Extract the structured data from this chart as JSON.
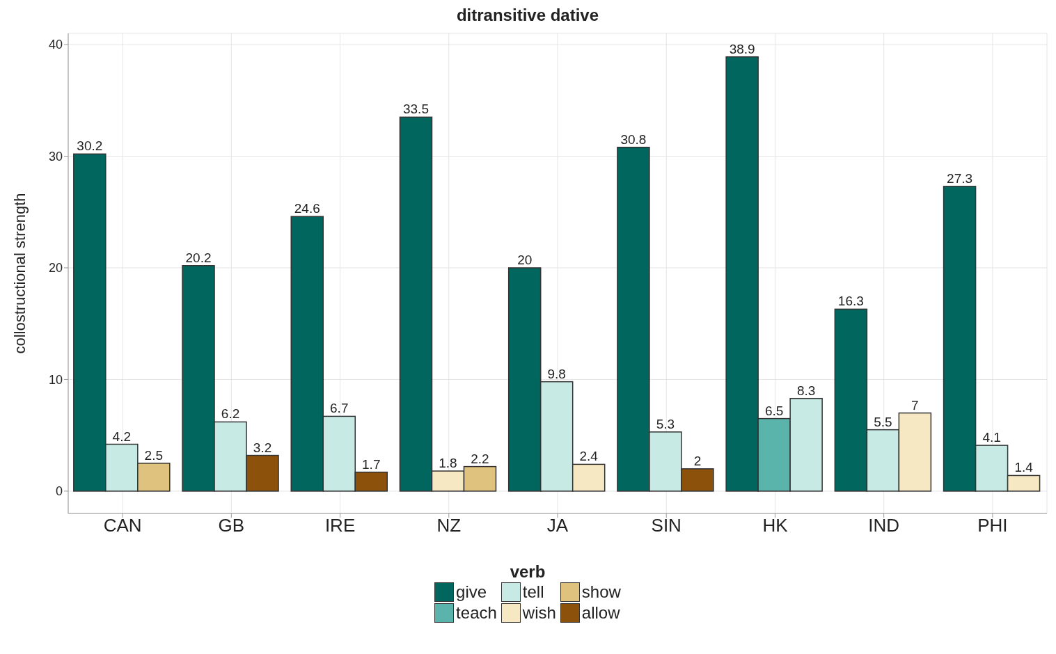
{
  "chart_data": {
    "type": "bar",
    "title": "ditransitive dative",
    "ylabel": "collostructional strength",
    "legend_title": "verb",
    "categories": [
      "CAN",
      "GB",
      "IRE",
      "NZ",
      "JA",
      "SIN",
      "HK",
      "IND",
      "PHI"
    ],
    "series": [
      {
        "name": "give",
        "color": "#01665e",
        "values": [
          30.2,
          20.2,
          24.6,
          33.5,
          20,
          30.8,
          38.9,
          16.3,
          27.3
        ]
      },
      {
        "name": "teach",
        "color": "#5ab4ac",
        "values": [
          null,
          null,
          null,
          null,
          null,
          null,
          6.5,
          null,
          null
        ]
      },
      {
        "name": "tell",
        "color": "#c7eae5",
        "values": [
          4.2,
          6.2,
          6.7,
          null,
          9.8,
          5.3,
          8.3,
          5.5,
          4.1
        ]
      },
      {
        "name": "wish",
        "color": "#f6e8c3",
        "values": [
          null,
          null,
          null,
          1.8,
          2.4,
          null,
          null,
          7,
          1.4
        ]
      },
      {
        "name": "show",
        "color": "#dfc27d",
        "values": [
          2.5,
          null,
          null,
          2.2,
          null,
          null,
          null,
          null,
          null
        ]
      },
      {
        "name": "allow",
        "color": "#8c510a",
        "values": [
          null,
          3.2,
          1.7,
          null,
          null,
          2,
          null,
          null,
          null
        ]
      }
    ],
    "ylim": [
      -2,
      41
    ],
    "yticks": [
      0,
      10,
      20,
      30,
      40
    ],
    "grid": true,
    "legend": "bottom",
    "data_labels": true
  }
}
